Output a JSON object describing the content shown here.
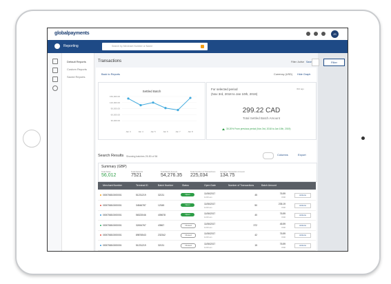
{
  "header": {
    "logo": "globalpayments",
    "avatar": "JS"
  },
  "nav": {
    "section": "Reporting",
    "search_placeholder": "Search by Merchant Number or Name"
  },
  "sidebar": [
    "Default Reports",
    "Custom Reports",
    "Saved Reports"
  ],
  "page": {
    "title": "Transactions",
    "filter_status": "Filter: Active",
    "save": "Save",
    "filter_button": "Filter",
    "back": "Back to Reports",
    "currency": "Currency (USD)",
    "hide_graph": "Hide Graph"
  },
  "graph": {
    "type": "line",
    "title": "Settled Batch",
    "color": "#3fa9dd",
    "categories": [
      "Jan 3",
      "Jan 4",
      "Jan 5",
      "Jan 6",
      "Jan 7",
      "Jan 8"
    ],
    "values": [
      140000,
      107000,
      120000,
      93000,
      83000,
      143000
    ],
    "ylim": [
      0,
      150000
    ],
    "yticks": [
      {
        "value": 30000,
        "label": "30,000.00"
      },
      {
        "value": 60000,
        "label": "60,000.00"
      },
      {
        "value": 90000,
        "label": "90,000.00"
      },
      {
        "value": 120000,
        "label": "120,000.00"
      },
      {
        "value": 150000,
        "label": "150,000.00"
      }
    ]
  },
  "period": {
    "label": "For selected period",
    "range": "(Nov 3rd, 2018 to Jan 10th, 2019)",
    "age": "30d ago",
    "amount": "299.22 CAD",
    "caption": "Total Settled Batch Amount",
    "change": "30.20% From previous period (Nov 3rd, 2018 to Jan 10th, 2019)"
  },
  "results": {
    "title": "Search Results",
    "showing": "Showing batches 25-50 of 56",
    "columns": "Columns",
    "export": "Export"
  },
  "summary": {
    "title": "Summary (GBP)",
    "stats": [
      {
        "label": "Total Sales",
        "value": "56,012"
      },
      {
        "label": "Total Refunds",
        "value": "7521"
      },
      {
        "label": "Total Batch Amount",
        "value": "54,276.35"
      },
      {
        "label": "Total Number of Transactions",
        "value": "225,034"
      },
      {
        "label": "Average Transaction Amount",
        "value": "134.75"
      }
    ]
  },
  "table": {
    "headers": [
      "Merchant Number",
      "Terminal ID",
      "Batch Number",
      "Status",
      "Open Date",
      "Number of Transactions",
      "Batch Amount"
    ],
    "dot_colors": [
      "#f39c12",
      "#e74c3c",
      "#3498db",
      "#27ae60",
      "#e74c3c",
      "#3498db"
    ],
    "action": "Actions",
    "rows": [
      [
        "000076810000001",
        "51231219",
        "32131",
        "Open",
        "11/06/2017",
        "11:00 am",
        "45",
        "76.59",
        "USD"
      ],
      [
        "000076810000001",
        "34546787",
        "12345",
        "Open",
        "11/06/2017",
        "11:00 am",
        "50",
        "235.19",
        "USD"
      ],
      [
        "000076810000001",
        "56323046",
        "405678",
        "Open",
        "11/06/2017",
        "11:00 am",
        "40",
        "76.59",
        "USD"
      ],
      [
        "000076810000001",
        "32454767",
        "43567",
        "Closed",
        "11/06/2017",
        "11:00 am",
        "372",
        "45.59",
        "USD"
      ],
      [
        "000076810000001",
        "89876543",
        "232342",
        "Closed",
        "11/06/2017",
        "11:00 am",
        "42",
        "76.59",
        "USD"
      ],
      [
        "000076810000001",
        "51231219",
        "32131",
        "Closed",
        "11/06/2017",
        "11:00 am",
        "15",
        "76.59",
        "USD"
      ]
    ]
  }
}
